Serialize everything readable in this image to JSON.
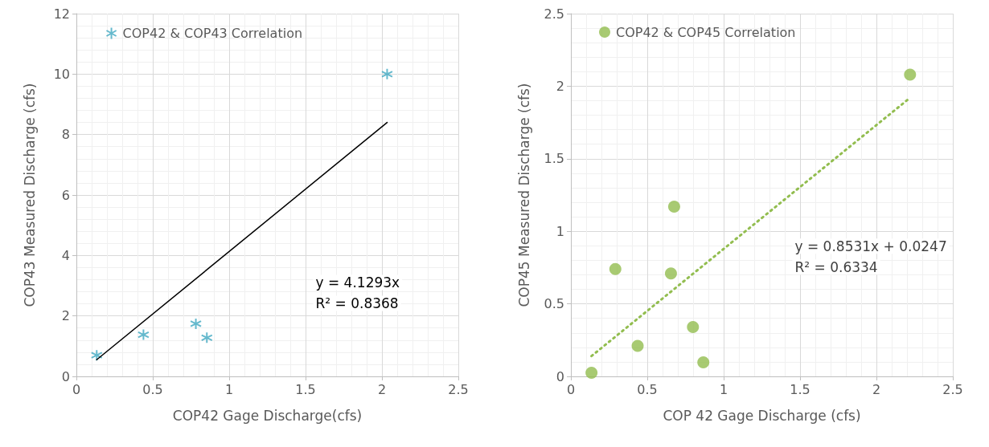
{
  "chart_data": [
    {
      "type": "scatter",
      "xlabel": "COP42 Gage Discharge(cfs)",
      "ylabel": "COP43 Measured Discharge (cfs)",
      "xlim": [
        0,
        2.5
      ],
      "xticks": [
        0,
        0.5,
        1,
        1.5,
        2,
        2.5
      ],
      "ylim": [
        0,
        12
      ],
      "yticks": [
        0,
        2,
        4,
        6,
        8,
        10,
        12
      ],
      "grid": true,
      "legend": "top left",
      "annotations": [
        "y = 4.1293x",
        "R² = 0.8368"
      ],
      "series": [
        {
          "name": "COP42 & COP43 Correlation",
          "color": "#3fa7c0",
          "marker": "cross",
          "x": [
            0.133,
            0.439,
            0.782,
            0.854,
            2.034
          ],
          "values": [
            0.7,
            1.38,
            1.74,
            1.28,
            10.0
          ]
        },
        {
          "type": "line",
          "color": "#000000",
          "line_style": "solid",
          "marker": "none",
          "x": [
            0.133,
            2.034
          ],
          "values": [
            0.55,
            8.4
          ]
        }
      ]
    },
    {
      "type": "scatter",
      "xlabel": "COP 42 Gage Discharge (cfs)",
      "ylabel": "COP45 Measured Discharge (cfs)",
      "xlim": [
        0,
        2.5
      ],
      "xticks": [
        0,
        0.5,
        1,
        1.5,
        2,
        2.5
      ],
      "ylim": [
        0,
        2.5
      ],
      "yticks": [
        0,
        0.5,
        1,
        1.5,
        2,
        2.5
      ],
      "grid": true,
      "legend": "top left",
      "annotations": [
        "y = 0.8531x + 0.0247",
        "R² = 0.6334"
      ],
      "series": [
        {
          "name": "COP42 & COP45 Correlation",
          "color": "#92bd4f",
          "marker": "circle",
          "x": [
            0.135,
            0.291,
            0.437,
            0.655,
            0.676,
            0.799,
            0.867,
            2.22
          ],
          "values": [
            0.025,
            0.74,
            0.21,
            0.71,
            1.17,
            0.34,
            0.097,
            2.08
          ]
        },
        {
          "type": "line",
          "color": "#92bd4f",
          "line_style": "dotted",
          "marker": "none",
          "x": [
            0.135,
            2.22
          ],
          "values": [
            0.14,
            1.92
          ]
        }
      ]
    }
  ]
}
